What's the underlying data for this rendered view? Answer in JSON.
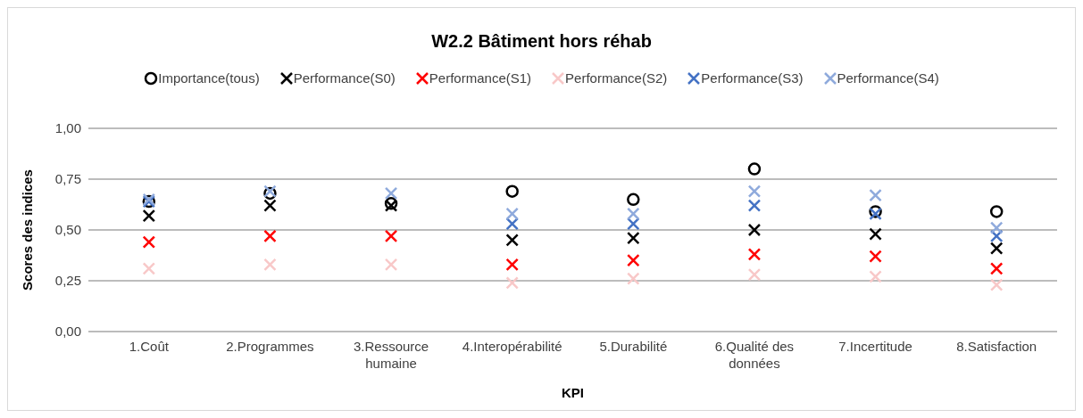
{
  "chart_data": {
    "type": "scatter",
    "title": "W2.2 Bâtiment hors réhab",
    "xlabel": "KPI",
    "ylabel": "Scores des indices",
    "categories": [
      "1.Coût",
      "2.Programmes",
      "3.Ressource humaine",
      "4.Interopérabilité",
      "5.Durabilité",
      "6.Qualité des données",
      "7.Incertitude",
      "8.Satisfaction"
    ],
    "series": [
      {
        "name": "Importance(tous)",
        "color": "#000000",
        "marker": "circle",
        "values": [
          0.64,
          0.68,
          0.63,
          0.69,
          0.65,
          0.8,
          0.59,
          0.59
        ]
      },
      {
        "name": "Performance(S0)",
        "color": "#000000",
        "marker": "cross",
        "values": [
          0.57,
          0.62,
          0.62,
          0.45,
          0.46,
          0.5,
          0.48,
          0.41
        ]
      },
      {
        "name": "Performance(S1)",
        "color": "#ff0000",
        "marker": "cross",
        "values": [
          0.44,
          0.47,
          0.47,
          0.33,
          0.35,
          0.38,
          0.37,
          0.31
        ]
      },
      {
        "name": "Performance(S2)",
        "color": "#f8c8c8",
        "marker": "cross",
        "values": [
          0.31,
          0.33,
          0.33,
          0.24,
          0.26,
          0.28,
          0.27,
          0.23
        ]
      },
      {
        "name": "Performance(S3)",
        "color": "#4472c4",
        "marker": "cross",
        "values": [
          0.64,
          null,
          null,
          0.53,
          0.53,
          0.62,
          0.58,
          0.47
        ]
      },
      {
        "name": "Performance(S4)",
        "color": "#8faadc",
        "marker": "cross",
        "values": [
          0.65,
          0.69,
          0.68,
          0.58,
          0.58,
          0.69,
          0.67,
          0.51
        ]
      }
    ],
    "ylim": [
      0,
      1
    ],
    "yticks": [
      {
        "value": 0,
        "label": "0,00"
      },
      {
        "value": 0.25,
        "label": "0,25"
      },
      {
        "value": 0.5,
        "label": "0,50"
      },
      {
        "value": 0.75,
        "label": "0,75"
      },
      {
        "value": 1,
        "label": "1,00"
      }
    ],
    "grid": "y",
    "legend": "top"
  }
}
